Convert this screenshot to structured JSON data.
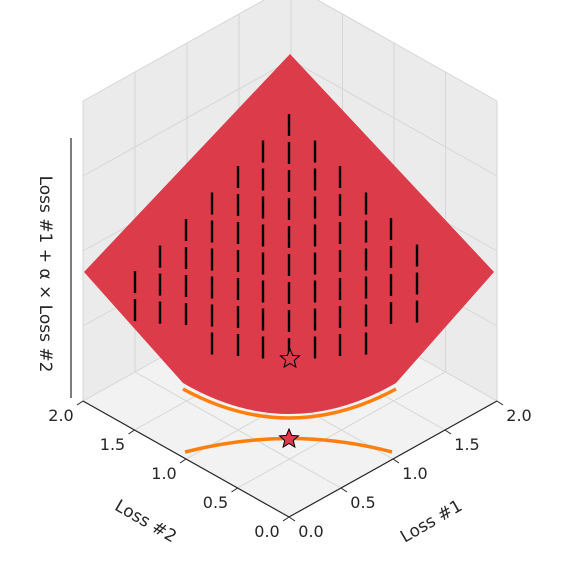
{
  "chart_data": {
    "type": "surface3d",
    "title": "",
    "xlabel": "Loss #1",
    "ylabel": "Loss #2",
    "zlabel": "Loss #1 + α × Loss #2",
    "xlim": [
      0.0,
      2.0
    ],
    "ylim": [
      0.0,
      2.0
    ],
    "x_ticks": [
      "0.0",
      "0.5",
      "1.0",
      "1.5",
      "2.0"
    ],
    "y_ticks": [
      "0.0",
      "0.5",
      "1.0",
      "1.5",
      "2.0"
    ],
    "surface_color": "#dc3b4a",
    "arrow_color": "#000000",
    "frontier_color": "#ff7f0e",
    "star_color": "#dc3b4a",
    "frontier_curves": [
      {
        "name": "pareto-front-floor",
        "shape": "arc",
        "center": [
          1.0,
          1.0
        ]
      },
      {
        "name": "pareto-front-surface",
        "shape": "arc",
        "center": [
          1.0,
          1.0
        ]
      }
    ],
    "optimum_points": [
      {
        "name": "optimum-floor",
        "loss1": 1.0,
        "loss2": 1.0
      },
      {
        "name": "optimum-surface",
        "loss1": 1.0,
        "loss2": 1.0
      }
    ],
    "grid": true
  }
}
